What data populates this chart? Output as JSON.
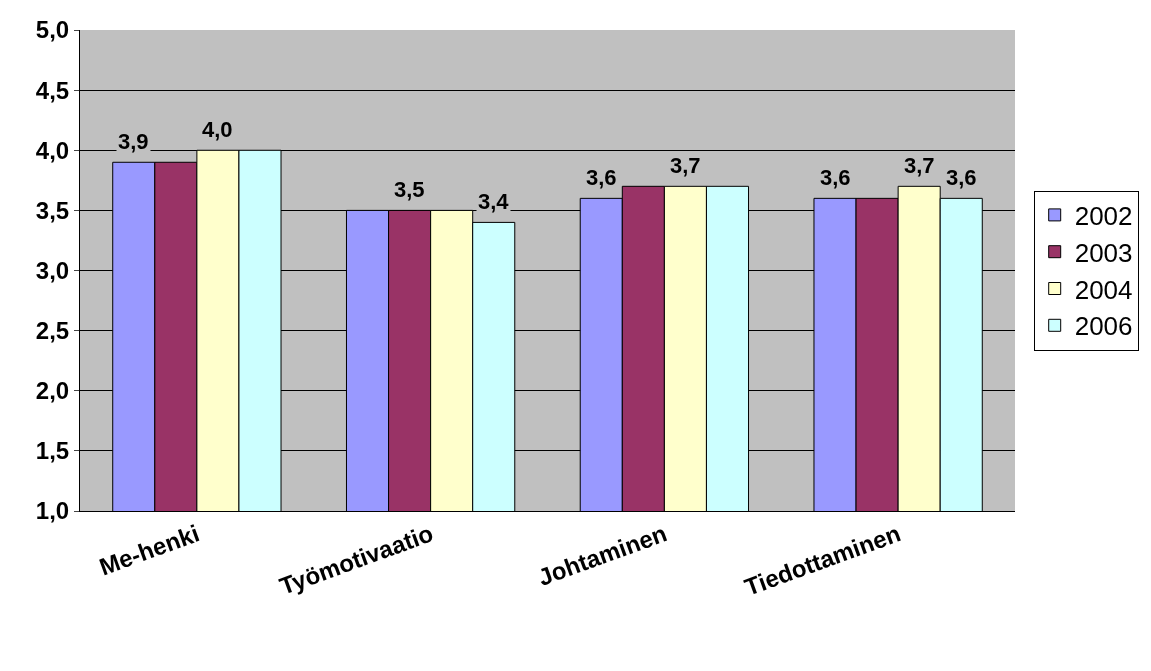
{
  "chart_data": {
    "type": "bar",
    "categories": [
      "Me-henki",
      "Työmotivaatio",
      "Johtaminen",
      "Tiedottaminen"
    ],
    "series": [
      {
        "name": "2002",
        "color": "#9999ff",
        "values": [
          3.9,
          3.5,
          3.6,
          3.6
        ],
        "value_labels": [
          "3,9",
          null,
          "3,6",
          "3,6"
        ]
      },
      {
        "name": "2003",
        "color": "#993366",
        "values": [
          3.9,
          3.5,
          3.7,
          3.6
        ],
        "value_labels": [
          null,
          "3,5",
          null,
          null
        ]
      },
      {
        "name": "2004",
        "color": "#ffffcc",
        "values": [
          4.0,
          3.5,
          3.7,
          3.7
        ],
        "value_labels": [
          "4,0",
          null,
          "3,7",
          "3,7"
        ]
      },
      {
        "name": "2006",
        "color": "#ccffff",
        "values": [
          4.0,
          3.4,
          3.7,
          3.6
        ],
        "value_labels": [
          null,
          "3,4",
          null,
          "3,6"
        ]
      }
    ],
    "ylim": [
      1.0,
      5.0
    ],
    "yticks": [
      {
        "value": 1.0,
        "label": "1,0"
      },
      {
        "value": 1.5,
        "label": "1,5"
      },
      {
        "value": 2.0,
        "label": "2,0"
      },
      {
        "value": 2.5,
        "label": "2,5"
      },
      {
        "value": 3.0,
        "label": "3,0"
      },
      {
        "value": 3.5,
        "label": "3,5"
      },
      {
        "value": 4.0,
        "label": "4,0"
      },
      {
        "value": 4.5,
        "label": "4,5"
      },
      {
        "value": 5.0,
        "label": "5,0"
      }
    ],
    "grid": "y",
    "legend": "right"
  }
}
